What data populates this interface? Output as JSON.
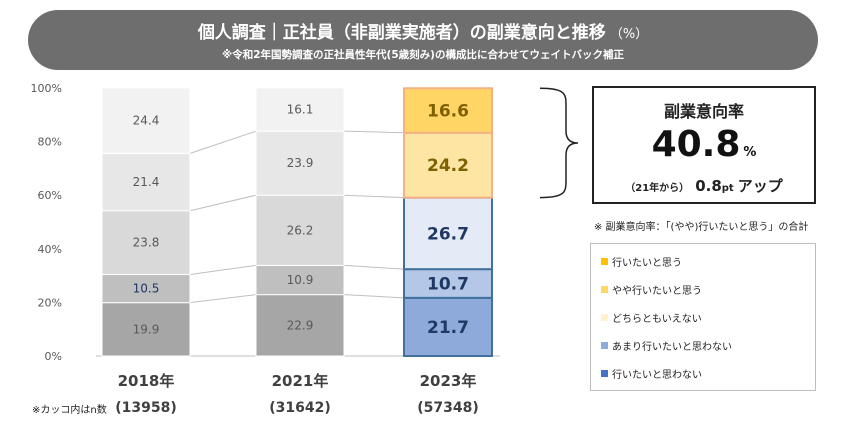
{
  "header": {
    "title": "個人調査｜正社員（非副業実施者）の副業意向と推移",
    "title_unit": "（%）",
    "subtitle": "※令和2年国勢調査の正社員性年代(5歳刻み)の構成比に合わせてウェイトバック補正"
  },
  "chart_data": {
    "type": "bar",
    "stacked": true,
    "normalized": true,
    "categories": [
      "2018年",
      "2021年",
      "2023年"
    ],
    "sample_sizes": [
      "(13958)",
      "(31642)",
      "(57348)"
    ],
    "yticks": [
      "0%",
      "20%",
      "40%",
      "60%",
      "80%",
      "100%"
    ],
    "ylim": [
      0,
      100
    ],
    "series": [
      {
        "name": "行いたいと思わない",
        "values": [
          19.9,
          22.9,
          21.7
        ],
        "value_labels": [
          "19.9",
          "22.9",
          "21.7"
        ],
        "colors": [
          "#a6a6a6",
          "#a6a6a6",
          "#8eaadb"
        ],
        "text_colors": [
          "#595959",
          "#595959",
          "#1f3864"
        ]
      },
      {
        "name": "あまり行いたいと思わない",
        "values": [
          10.5,
          10.9,
          10.7
        ],
        "value_labels": [
          "10.5",
          "10.9",
          "10.7"
        ],
        "colors": [
          "#bfbfbf",
          "#bfbfbf",
          "#b4c7e7"
        ],
        "text_colors": [
          "#1f3864",
          "#595959",
          "#1f3864"
        ]
      },
      {
        "name": "どちらともいえない",
        "values": [
          23.8,
          26.2,
          26.7
        ],
        "value_labels": [
          "23.8",
          "26.2",
          "26.7"
        ],
        "colors": [
          "#d9d9d9",
          "#d9d9d9",
          "#e4ebf7"
        ],
        "text_colors": [
          "#595959",
          "#595959",
          "#1f3864"
        ]
      },
      {
        "name": "やや行いたいと思う",
        "values": [
          21.4,
          23.9,
          24.2
        ],
        "value_labels": [
          "21.4",
          "23.9",
          "24.2"
        ],
        "colors": [
          "#e7e7e7",
          "#e7e7e7",
          "#ffe5a3"
        ],
        "text_colors": [
          "#595959",
          "#595959",
          "#7f6000"
        ]
      },
      {
        "name": "行いたいと思う",
        "values": [
          24.4,
          16.1,
          16.6
        ],
        "value_labels": [
          "24.4",
          "16.1",
          "16.6"
        ],
        "colors": [
          "#f2f2f2",
          "#f2f2f2",
          "#ffd666"
        ],
        "text_colors": [
          "#595959",
          "#595959",
          "#7f6000"
        ]
      }
    ],
    "legend_colors": [
      "#ffc000",
      "#ffd966",
      "#fff2cc",
      "#8eaadb",
      "#4472c4"
    ],
    "legend_order": [
      4,
      3,
      2,
      1,
      0
    ],
    "grid": false
  },
  "rate_box": {
    "label": "副業意向率",
    "value": "40.8",
    "value_unit": "%",
    "change_from": "（21年から）",
    "change_value": "0.8",
    "change_unit": "pt",
    "change_text": "アップ"
  },
  "rate_note": "※ 副業意向率：「(やや)行いたいと思う」の合計",
  "sample_note": "※カッコ内はn数"
}
